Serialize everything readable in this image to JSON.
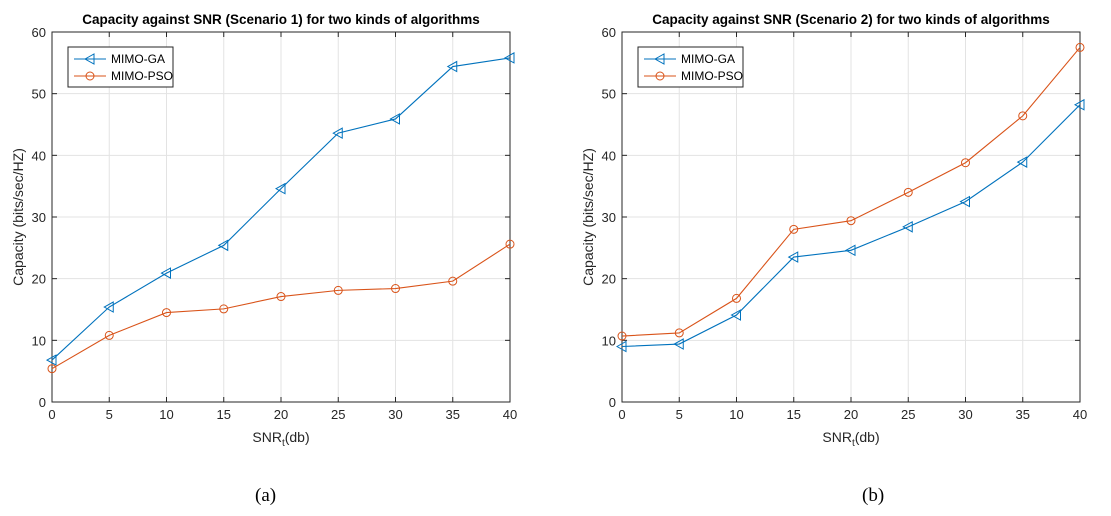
{
  "chart_data": [
    {
      "type": "line",
      "title": "Capacity against SNR (Scenario 1) for two kinds of algorithms",
      "xlabel": "SNR",
      "xlabel_sub": "t",
      "xlabel_suffix": "(db)",
      "ylabel": "Capacity (bits/sec/HZ)",
      "x": [
        0,
        5,
        10,
        15,
        20,
        25,
        30,
        35,
        40
      ],
      "xlim": [
        0,
        40
      ],
      "ylim": [
        0,
        60
      ],
      "xticks": [
        0,
        5,
        10,
        15,
        20,
        25,
        30,
        35,
        40
      ],
      "yticks": [
        0,
        10,
        20,
        30,
        40,
        50,
        60
      ],
      "grid": true,
      "legend_position": "top-left",
      "series": [
        {
          "name": "MIMO-GA",
          "color": "#0072BD",
          "marker": "triangle-left",
          "values": [
            6.8,
            15.4,
            20.9,
            25.4,
            34.6,
            43.6,
            45.9,
            54.4,
            55.8
          ]
        },
        {
          "name": "MIMO-PSO",
          "color": "#D95319",
          "marker": "circle",
          "values": [
            5.4,
            10.8,
            14.5,
            15.1,
            17.1,
            18.1,
            18.4,
            19.6,
            25.6
          ]
        }
      ]
    },
    {
      "type": "line",
      "title": "Capacity against SNR (Scenario 2) for two kinds of algorithms",
      "xlabel": "SNR",
      "xlabel_sub": "t",
      "xlabel_suffix": "(db)",
      "ylabel": "Capacity (bits/sec/HZ)",
      "x": [
        0,
        5,
        10,
        15,
        20,
        25,
        30,
        35,
        40
      ],
      "xlim": [
        0,
        40
      ],
      "ylim": [
        0,
        60
      ],
      "xticks": [
        0,
        5,
        10,
        15,
        20,
        25,
        30,
        35,
        40
      ],
      "yticks": [
        0,
        10,
        20,
        30,
        40,
        50,
        60
      ],
      "grid": true,
      "legend_position": "top-left",
      "series": [
        {
          "name": "MIMO-GA",
          "color": "#0072BD",
          "marker": "triangle-left",
          "values": [
            9.0,
            9.4,
            14.1,
            23.5,
            24.6,
            28.4,
            32.5,
            38.9,
            48.2
          ]
        },
        {
          "name": "MIMO-PSO",
          "color": "#D95319",
          "marker": "circle",
          "values": [
            10.7,
            11.2,
            16.8,
            28.0,
            29.4,
            34.0,
            38.8,
            46.4,
            57.5
          ]
        }
      ]
    }
  ],
  "captions": [
    "(a)",
    "(b)"
  ]
}
